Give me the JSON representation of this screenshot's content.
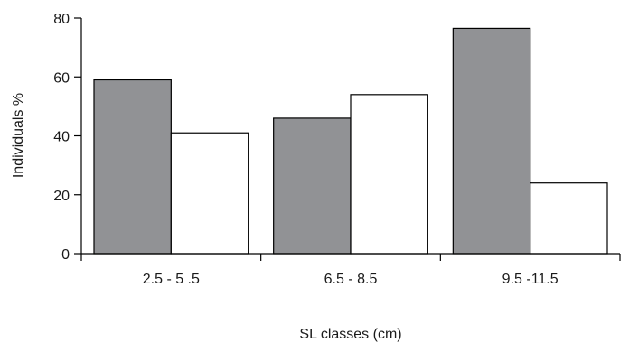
{
  "chart_data": {
    "type": "bar",
    "title": "",
    "xlabel": "SL classes (cm)",
    "ylabel": "Individuals %",
    "categories": [
      "2.5 - 5 .5",
      "6.5 - 8.5",
      "9.5 -11.5"
    ],
    "series": [
      {
        "values": [
          59,
          46,
          76.5
        ],
        "color": "#919295"
      },
      {
        "values": [
          41,
          54,
          24
        ],
        "color": "#ffffff"
      }
    ],
    "ylim": [
      0,
      80
    ],
    "yticks": [
      "0",
      "20",
      "40",
      "60",
      "80"
    ],
    "grid": false,
    "legend": "none"
  }
}
